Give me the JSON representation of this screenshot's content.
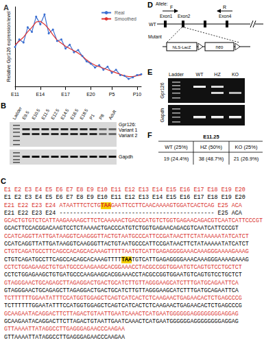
{
  "chart_data": {
    "type": "line",
    "ylabel": "Relative Gpr126 expression level",
    "categories": [
      "E11",
      null,
      null,
      null,
      null,
      null,
      "E14",
      null,
      null,
      null,
      null,
      null,
      "E17",
      null,
      null,
      null,
      null,
      null,
      "E20",
      null,
      null,
      null,
      null,
      "P5",
      null,
      null,
      null,
      null,
      null,
      "P10",
      null
    ],
    "series": [
      {
        "name": "Real",
        "color": "#3b6fd1",
        "marker": "circle",
        "values": [
          0.52,
          0.62,
          0.58,
          0.78,
          0.72,
          0.92,
          0.82,
          0.95,
          0.7,
          0.75,
          0.6,
          0.62,
          0.5,
          0.55,
          0.45,
          0.48,
          0.4,
          0.33,
          0.3,
          0.25,
          0.28,
          0.22,
          0.26,
          0.18,
          0.22,
          0.15,
          0.14,
          0.1,
          0.12,
          0.15,
          0.16
        ]
      },
      {
        "name": "Smoothed",
        "color": "#e0302f",
        "marker": "none",
        "values": [
          0.55,
          0.6,
          0.65,
          0.72,
          0.78,
          0.85,
          0.86,
          0.82,
          0.76,
          0.68,
          0.61,
          0.57,
          0.53,
          0.5,
          0.47,
          0.44,
          0.4,
          0.35,
          0.31,
          0.28,
          0.26,
          0.24,
          0.22,
          0.2,
          0.18,
          0.16,
          0.14,
          0.13,
          0.13,
          0.14,
          0.15
        ]
      }
    ],
    "ylim": [
      0,
      1.05
    ],
    "yticks": [],
    "tick_labels": "x",
    "legend": "upper right",
    "grid": false
  },
  "panel_labels": {
    "A": "A",
    "B": "B",
    "C": "C",
    "D": "D",
    "E": "E",
    "F": "F"
  },
  "panel_b": {
    "lanes": [
      "Ladder",
      "E9.5",
      "E10.5",
      "E11.5",
      "E12.5",
      "E14.5",
      "E16.5",
      "E18.5",
      "P1",
      "P8",
      "Adult"
    ],
    "gene_label": "Gpr126:",
    "variants": [
      "Variant 1",
      "Variant 2"
    ],
    "control": "Gapdh"
  },
  "panel_d": {
    "allele_label": "Allele:",
    "forward_primer": "F",
    "reverse_primer": "R",
    "exons": [
      "Exon1",
      "Exon2",
      "Exon4"
    ],
    "wt_label": "WT",
    "mutant_label": "Mutant",
    "cassettes": [
      "NLS-LacZ",
      "neo"
    ]
  },
  "panel_e": {
    "lanes": [
      "Ladder",
      "WT",
      "HZ",
      "KO"
    ],
    "rows": [
      "Gpr126",
      "Gapdh"
    ]
  },
  "panel_f": {
    "stage": "E11.25",
    "header": [
      "WT (25%)",
      "HZ (50%)",
      "KO (25%)"
    ],
    "counts": [
      "19 (24.4%)",
      "38 (48.7%)",
      "21 (26.9%)"
    ]
  },
  "panel_c": {
    "lines": [
      {
        "color": "#d9302c",
        "segments": [
          {
            "text": "E1 E2 E3 E4 E5 E6 E7 E8 E9 E10 E11 E12 E13 E14 E15 E16 E17 E18 E19 E20"
          }
        ]
      },
      {
        "color": "#000000",
        "segments": [
          {
            "text": "E1 E2 E3 E4 E5 E6 E7 E8 E9 E10 E11 E12 E13 E14 E15 E16 E17 E18 E19 E20"
          }
        ]
      },
      {
        "color": "#d9302c",
        "segments": [
          {
            "text": "E21 E22 E23 E24 ATAATTTCTCTG"
          },
          {
            "text": "TAA",
            "mark": true
          },
          {
            "text": "GAATTCCTTCAACAAAAGTGGATCACTCAG E25 ACA"
          }
        ]
      },
      {
        "color": "#000000",
        "segments": [
          {
            "text": "E21 E22 E23 E24 --------------------------------------------- E25 ACA"
          }
        ]
      },
      {
        "color": "#d9302c",
        "segments": [
          {
            "text": "GCACTGTGTCTCATTAAGAAAAGCTTCTCAAAAACTGACCCATGTCTGGTGAGAACAGACGTCAATCATTCCCGT"
          }
        ]
      },
      {
        "color": "#000000",
        "segments": [
          {
            "text": "GCACTTCCACGGACAAGTCCTCTAAAACTGACCCATGTCTGGTGAGAACAGACGTCAATCATTCCCGT"
          }
        ]
      },
      {
        "color": "#d9302c",
        "segments": [
          {
            "text": "CCATCAGGTTATTGATAAGGTCAAGGGTTACTGTAATGCCCATTCCGATAACTTCTATAAAAATATCATCT"
          }
        ]
      },
      {
        "color": "#000000",
        "segments": [
          {
            "text": "CCATCAGGTTATTGATAAGGTCAAGGGTTACTGTAATGCCCATTCCGATAACTTCTATAAAAATATCATCT"
          }
        ]
      },
      {
        "color": "#d9302c",
        "segments": [
          {
            "text": "CTGTCAGATGCCTTCAGCCACAGCACAAAGTTTTTAATGTCATTGAGAGGGGAAACAAAGGGAAAAGAAAG"
          }
        ]
      },
      {
        "color": "#000000",
        "segments": [
          {
            "text": "CTGTCAGATGCCTTCAGCCACAGCACAAAGTTTT"
          },
          {
            "text": "TAA",
            "mark": true
          },
          {
            "text": "TGTCATTGAGAGGGGAAACAAAGGGAAAAGAAAG"
          }
        ]
      },
      {
        "color": "#d9302c",
        "segments": [
          {
            "text": "CCTCTGGAGAAGCTGTGATGCCCAAGAAGCACGGAAACCTACGCCGGTGGAATGTCAGTGTCCTGCTCT"
          }
        ]
      },
      {
        "color": "#000000",
        "segments": [
          {
            "text": "CCTCTGGAGAAGCTGTGATGCCCAAGAAGCACGGAAACCTACGCCGGTGGAATGTCAGTGTCCTGCTCT"
          }
        ]
      },
      {
        "color": "#d9302c",
        "segments": [
          {
            "text": "GTAGGGAACTGCAGAGCTTAGAGGACTGACTGCATCTTGTTAGGGAAGCATCTTTGATGCAGAATTCA"
          }
        ]
      },
      {
        "color": "#000000",
        "segments": [
          {
            "text": "GTAGGGAACTGCAGAGCTTAGAGGACTGACTGCATCTTGTTAGGGAAGCATCTTTGATGCAGAATTCA"
          }
        ]
      },
      {
        "color": "#d9302c",
        "segments": [
          {
            "text": "TCTTTTTTGGAATATTTCCATGGTGGAGCTCAGTCATCACTCTCAAGAACTGAGAACACTCTGAGCCCG"
          }
        ]
      },
      {
        "color": "#000000",
        "segments": [
          {
            "text": "TCTTTTTTGGAATATTTCCATGGTGGAGCTCAGTCATCACTCTCAAGAACTGAGAACACTCTGAGCCCG"
          }
        ]
      },
      {
        "color": "#d9302c",
        "segments": [
          {
            "text": "GCAAGAATACAGGACTTCTTAGACTGTAATTGAATCAAACTCATGAATGGGGGGAGGGGGGGGAGGAG"
          }
        ]
      },
      {
        "color": "#000000",
        "segments": [
          {
            "text": "GCAAGAATACAGGACTTCTTAGACTGTAATTGAATCAAACTCATGAATGGGGGGAGGGGGGGGAGGAG"
          }
        ]
      },
      {
        "color": "#d9302c",
        "segments": [
          {
            "text": "GTTAAAATTATAGGCCTTGAGGGAGAACCCAAGAA"
          }
        ]
      },
      {
        "color": "#000000",
        "segments": [
          {
            "text": "GTTAAAATTATAGGCCTTGAGGGAGAACCCAAGAA"
          }
        ]
      }
    ]
  }
}
